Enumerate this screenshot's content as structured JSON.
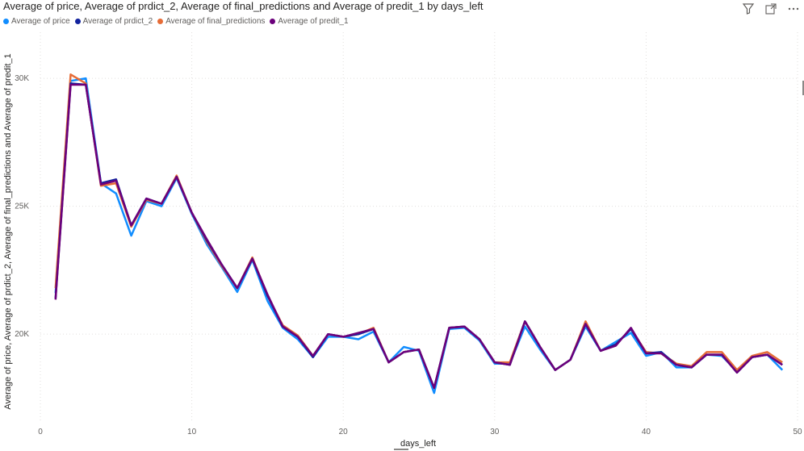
{
  "header": {
    "title": "Average of price, Average of prdict_2, Average of final_predictions and Average of predit_1 by days_left",
    "filter_icon": "filter-icon",
    "focus_icon": "focus-mode-icon",
    "more_icon": "more-options-icon"
  },
  "chart_data": {
    "type": "line",
    "title": "Average of price, Average of prdict_2, Average of final_predictions and Average of predit_1 by days_left",
    "xlabel": "days_left",
    "ylabel": "Average of price, Average of prdict_2, Average of final_predictions and Average of predit_1",
    "xlim": [
      0,
      50
    ],
    "ylim": [
      16600,
      31800
    ],
    "x_ticks": [
      0,
      10,
      20,
      30,
      40,
      50
    ],
    "y_ticks": [
      20000,
      25000,
      30000
    ],
    "y_tick_labels": [
      "20K",
      "25K",
      "30K"
    ],
    "grid": true,
    "legend_position": "top-left",
    "x": [
      1,
      2,
      3,
      4,
      5,
      6,
      7,
      8,
      9,
      10,
      11,
      12,
      13,
      14,
      15,
      16,
      17,
      18,
      19,
      20,
      21,
      22,
      23,
      24,
      25,
      26,
      27,
      28,
      29,
      30,
      31,
      32,
      33,
      34,
      35,
      36,
      37,
      38,
      39,
      40,
      41,
      42,
      43,
      44,
      45,
      46,
      47,
      48,
      49
    ],
    "series": [
      {
        "name": "Average of price",
        "color": "#118DFF",
        "values": [
          21600,
          29900,
          30000,
          25900,
          25500,
          23850,
          25200,
          25000,
          26100,
          24700,
          23500,
          22600,
          21650,
          22900,
          21300,
          20250,
          19800,
          19100,
          19900,
          19900,
          19800,
          20100,
          18900,
          19500,
          19350,
          17700,
          20200,
          20250,
          19750,
          18850,
          18850,
          20300,
          19400,
          18600,
          19000,
          20300,
          19350,
          19700,
          20050,
          19150,
          19300,
          18700,
          18700,
          19200,
          19150,
          18550,
          19100,
          19200,
          18600
        ]
      },
      {
        "name": "Average of prdict_2",
        "color": "#12239E",
        "values": [
          21400,
          29800,
          29750,
          25900,
          26050,
          24250,
          25300,
          25100,
          26150,
          24750,
          23650,
          22700,
          21800,
          22950,
          21500,
          20300,
          19900,
          19100,
          20000,
          19900,
          20000,
          20200,
          18900,
          19300,
          19400,
          17900,
          20250,
          20300,
          19800,
          18900,
          18800,
          20500,
          19500,
          18600,
          19000,
          20400,
          19350,
          19600,
          20200,
          19250,
          19300,
          18800,
          18700,
          19200,
          19200,
          18500,
          19100,
          19200,
          18800
        ]
      },
      {
        "name": "Average of final_predictions",
        "color": "#E66C37",
        "values": [
          21800,
          30150,
          29800,
          25800,
          25900,
          24200,
          25250,
          25100,
          26200,
          24750,
          23600,
          22650,
          21800,
          23000,
          21500,
          20350,
          19950,
          19150,
          20000,
          19900,
          20000,
          20250,
          18900,
          19300,
          19400,
          17900,
          20250,
          20300,
          19800,
          18900,
          18900,
          20500,
          19500,
          18600,
          19000,
          20500,
          19350,
          19600,
          20200,
          19300,
          19250,
          18850,
          18750,
          19300,
          19300,
          18600,
          19150,
          19300,
          18900
        ]
      },
      {
        "name": "Average of predit_1",
        "color": "#6B007B",
        "values": [
          21350,
          29750,
          29750,
          25850,
          26000,
          24250,
          25300,
          25100,
          26150,
          24750,
          23700,
          22700,
          21800,
          22950,
          21550,
          20300,
          19900,
          19150,
          20000,
          19900,
          20050,
          20200,
          18900,
          19300,
          19400,
          17900,
          20250,
          20300,
          19800,
          18900,
          18800,
          20500,
          19500,
          18600,
          19000,
          20400,
          19350,
          19550,
          20250,
          19250,
          19250,
          18800,
          18700,
          19200,
          19200,
          18500,
          19100,
          19200,
          18800
        ]
      }
    ]
  }
}
